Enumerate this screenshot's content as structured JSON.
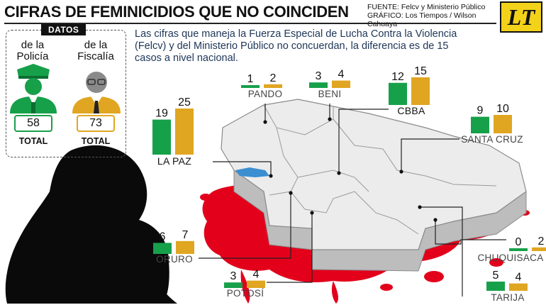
{
  "header": {
    "title": "CIFRAS DE FEMINICIDIOS QUE NO COINCIDEN",
    "source": "FUENTE: Felcv y Ministerio Público",
    "graphic": "GRÁFICO: Los Tiempos / Wilson Cahuaya",
    "logo_text": "LT"
  },
  "intro": "Las cifras que maneja la Fuerza Especial de Lucha Contra la Violencia (Felcv) y del Ministerio Público no concuerdan, la diferencia es de 15 casos a nivel nacional.",
  "datos": {
    "tag": "DATOS",
    "policia": {
      "label_1": "de la",
      "label_2": "Policía",
      "value": "58",
      "total_label": "TOTAL",
      "color": "#17a04a"
    },
    "fiscalia": {
      "label_1": "de la",
      "label_2": "Fiscalía",
      "value": "73",
      "total_label": "TOTAL",
      "color": "#e0a622"
    }
  },
  "colors": {
    "police": "#17a04a",
    "fiscalia": "#e0a622",
    "blood": "#e3001b",
    "map_fill": "#ececec",
    "map_side": "#bdbdbd"
  },
  "chart_data": {
    "type": "bar",
    "series": [
      {
        "name": "Policía",
        "color": "#17a04a"
      },
      {
        "name": "Fiscalía",
        "color": "#e0a622"
      }
    ],
    "totals": {
      "Policía": 58,
      "Fiscalía": 73
    },
    "categories": [
      "PANDO",
      "BENI",
      "CBBA",
      "SANTA CRUZ",
      "LA PAZ",
      "ORURO",
      "CHUQUISACA",
      "POTOSÍ",
      "TARIJA"
    ],
    "departments": [
      {
        "name": "PANDO",
        "policia": 1,
        "fiscalia": 2
      },
      {
        "name": "BENI",
        "policia": 3,
        "fiscalia": 4
      },
      {
        "name": "CBBA",
        "policia": 12,
        "fiscalia": 15
      },
      {
        "name": "SANTA CRUZ",
        "policia": 9,
        "fiscalia": 10
      },
      {
        "name": "LA PAZ",
        "policia": 19,
        "fiscalia": 25
      },
      {
        "name": "ORURO",
        "policia": 6,
        "fiscalia": 7
      },
      {
        "name": "CHUQUISACA",
        "policia": 0,
        "fiscalia": 2
      },
      {
        "name": "POTOSÍ",
        "policia": 3,
        "fiscalia": 4
      },
      {
        "name": "TARIJA",
        "policia": 5,
        "fiscalia": 4
      }
    ]
  }
}
